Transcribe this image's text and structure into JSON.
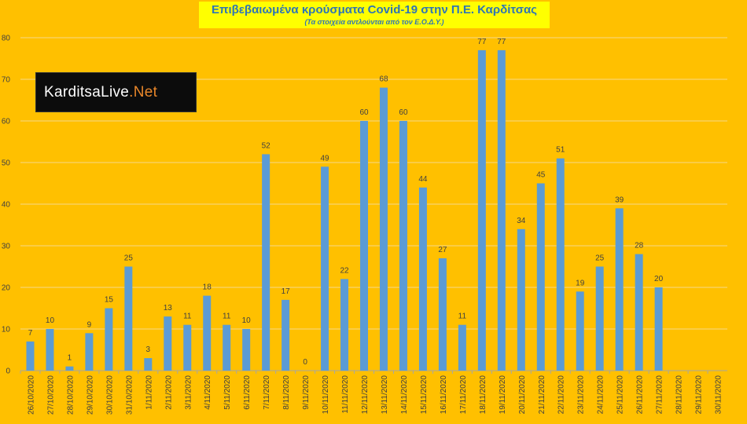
{
  "chart_data": {
    "type": "bar",
    "title": "Επιβεβαιωμένα κρούσματα Covid-19 στην Π.Ε. Καρδίτσας",
    "subtitle": "(Τα στοιχεία αντλούνται από τον Ε.Ο.Δ.Υ.)",
    "categories": [
      "26/10/2020",
      "27/10/2020",
      "28/10/2020",
      "29/10/2020",
      "30/10/2020",
      "31/10/2020",
      "1/11/2020",
      "2/11/2020",
      "3/11/2020",
      "4/11/2020",
      "5/11/2020",
      "6/11/2020",
      "7/11/2020",
      "8/11/2020",
      "9/11/2020",
      "10/11/2020",
      "11/11/2020",
      "12/11/2020",
      "13/11/2020",
      "14/11/2020",
      "15/11/2020",
      "16/11/2020",
      "17/11/2020",
      "18/11/2020",
      "19/11/2020",
      "20/11/2020",
      "21/11/2020",
      "22/11/2020",
      "23/11/2020",
      "24/11/2020",
      "25/11/2020",
      "26/11/2020",
      "27/11/2020",
      "28/11/2020",
      "29/11/2020",
      "30/11/2020"
    ],
    "values": [
      7,
      10,
      1,
      9,
      15,
      25,
      3,
      13,
      11,
      18,
      11,
      10,
      52,
      17,
      0,
      49,
      22,
      60,
      68,
      60,
      44,
      27,
      11,
      77,
      77,
      34,
      45,
      51,
      19,
      25,
      39,
      28,
      20,
      null,
      null,
      null
    ],
    "ylim": [
      0,
      80
    ],
    "yticks": [
      0,
      10,
      20,
      30,
      40,
      50,
      60,
      70,
      80
    ],
    "grid": true,
    "colors": {
      "bar": "#5B9BD5",
      "background": "#FFC000",
      "grid": "#F5D98A",
      "text": "#404040"
    }
  },
  "logo": {
    "part1": "KarditsaLive",
    "part2": ".Net"
  }
}
